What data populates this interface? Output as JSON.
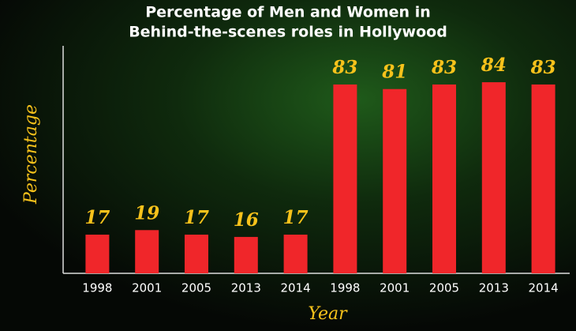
{
  "chart_data": {
    "type": "bar",
    "title": [
      "Percentage of Men and Women in",
      "Behind-the-scenes roles in Hollywood"
    ],
    "y_label": "Percentage",
    "x_label": "Year",
    "categories": [
      "1998",
      "2001",
      "2005",
      "2013",
      "2014",
      "1998",
      "2001",
      "2005",
      "2013",
      "2014"
    ],
    "values": [
      17,
      19,
      17,
      16,
      17,
      83,
      81,
      83,
      84,
      83
    ],
    "color": "#f0262a",
    "label_color": "#f7c21b",
    "ylim": [
      0,
      100
    ]
  }
}
